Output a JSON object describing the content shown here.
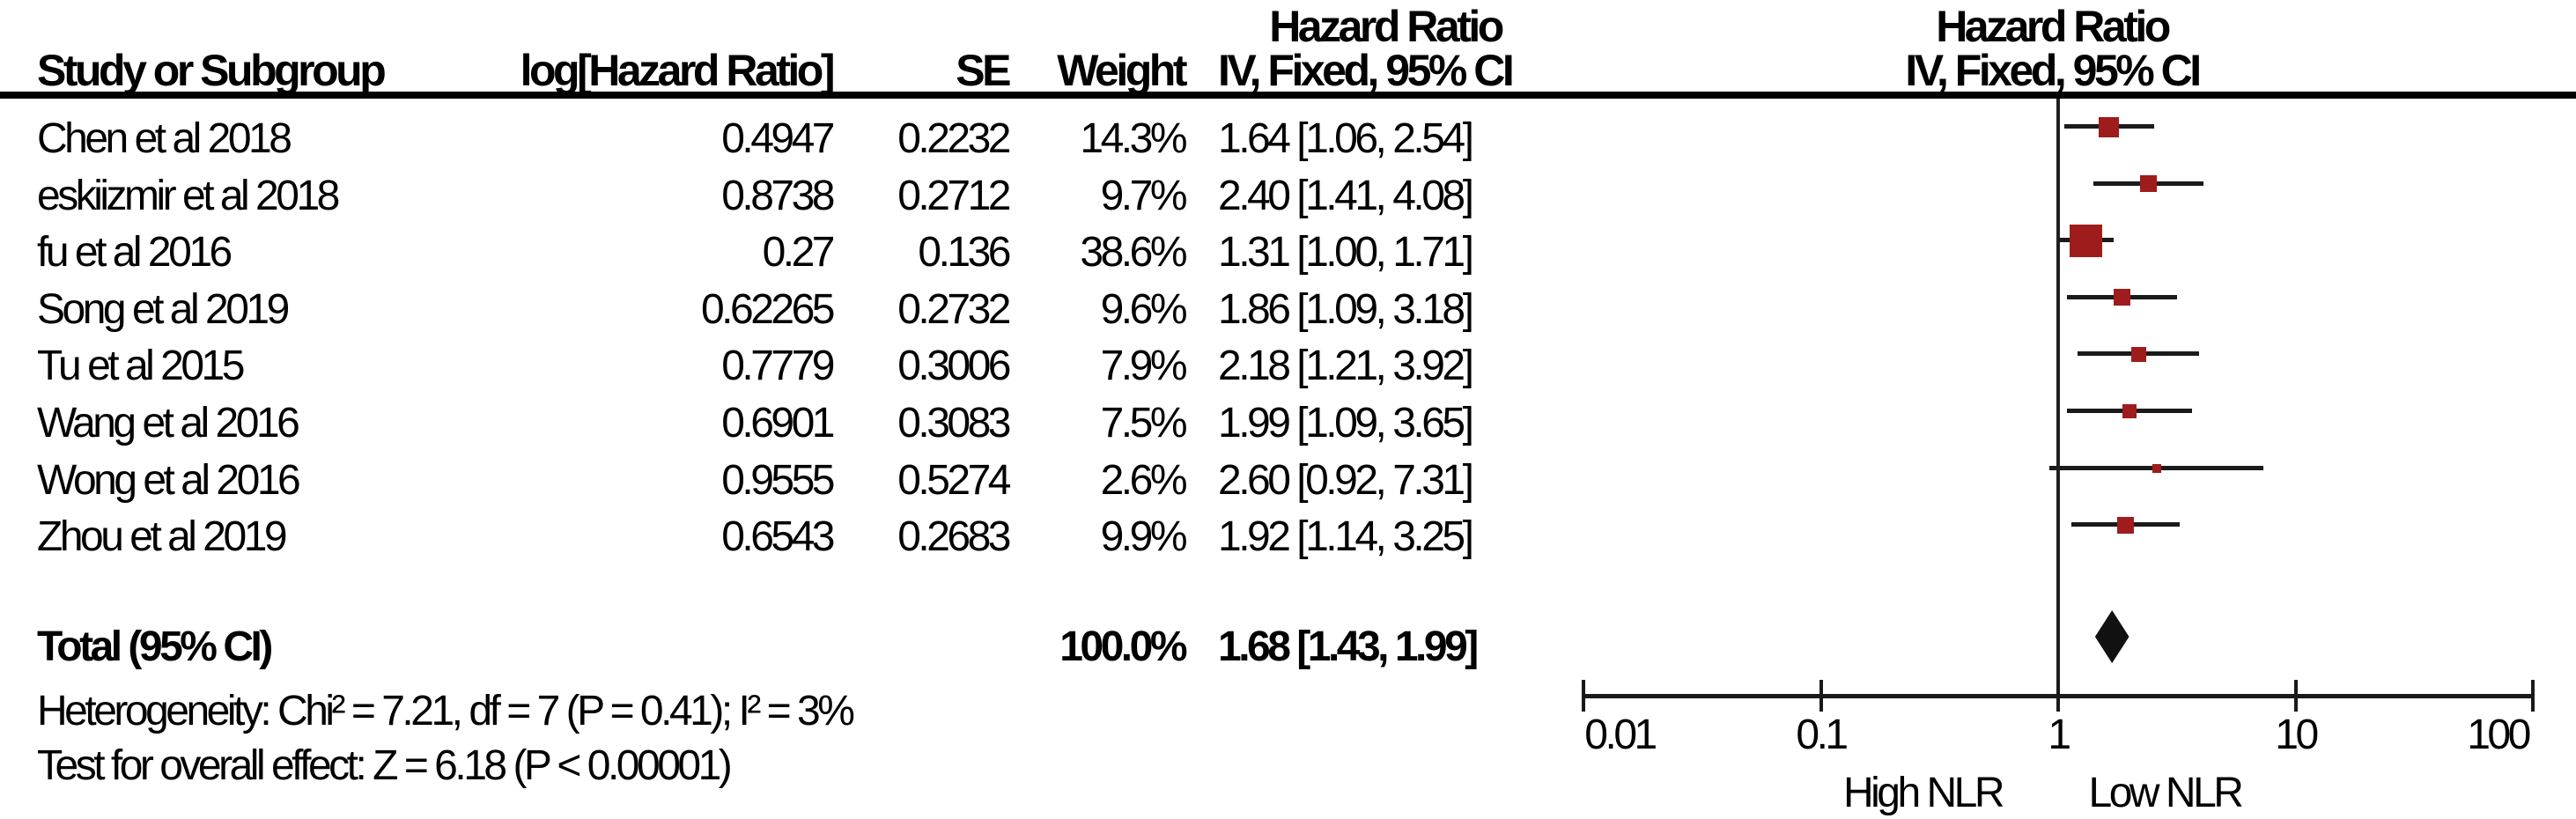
{
  "table": {
    "stat_col_title": "Hazard Ratio",
    "plot_col_title": "Hazard Ratio",
    "col_headers": {
      "study": "Study or Subgroup",
      "log_hr": "log[Hazard Ratio]",
      "se": "SE",
      "weight": "Weight",
      "ci": "IV, Fixed, 95% CI",
      "plot_ci": "IV, Fixed, 95% CI"
    }
  },
  "chart_data": {
    "type": "forest",
    "effect_measure": "Hazard Ratio",
    "model": "IV, Fixed, 95% CI",
    "studies": [
      {
        "name": "Chen et al 2018",
        "log_hr": "0.4947",
        "se": "0.2232",
        "weight": "14.3%",
        "weight_pct": 14.3,
        "hr": 1.64,
        "ci_low": 1.06,
        "ci_high": 2.54,
        "ci_text": "1.64 [1.06, 2.54]"
      },
      {
        "name": "eskiizmir et al 2018",
        "log_hr": "0.8738",
        "se": "0.2712",
        "weight": "9.7%",
        "weight_pct": 9.7,
        "hr": 2.4,
        "ci_low": 1.41,
        "ci_high": 4.08,
        "ci_text": "2.40 [1.41, 4.08]"
      },
      {
        "name": "fu et al 2016",
        "log_hr": "0.27",
        "se": "0.136",
        "weight": "38.6%",
        "weight_pct": 38.6,
        "hr": 1.31,
        "ci_low": 1.0,
        "ci_high": 1.71,
        "ci_text": "1.31 [1.00, 1.71]"
      },
      {
        "name": "Song et al 2019",
        "log_hr": "0.62265",
        "se": "0.2732",
        "weight": "9.6%",
        "weight_pct": 9.6,
        "hr": 1.86,
        "ci_low": 1.09,
        "ci_high": 3.18,
        "ci_text": "1.86 [1.09, 3.18]"
      },
      {
        "name": "Tu et al 2015",
        "log_hr": "0.7779",
        "se": "0.3006",
        "weight": "7.9%",
        "weight_pct": 7.9,
        "hr": 2.18,
        "ci_low": 1.21,
        "ci_high": 3.92,
        "ci_text": "2.18 [1.21, 3.92]"
      },
      {
        "name": "Wang et al 2016",
        "log_hr": "0.6901",
        "se": "0.3083",
        "weight": "7.5%",
        "weight_pct": 7.5,
        "hr": 1.99,
        "ci_low": 1.09,
        "ci_high": 3.65,
        "ci_text": "1.99 [1.09, 3.65]"
      },
      {
        "name": "Wong et al 2016",
        "log_hr": "0.9555",
        "se": "0.5274",
        "weight": "2.6%",
        "weight_pct": 2.6,
        "hr": 2.6,
        "ci_low": 0.92,
        "ci_high": 7.31,
        "ci_text": "2.60 [0.92, 7.31]"
      },
      {
        "name": "Zhou et al 2019",
        "log_hr": "0.6543",
        "se": "0.2683",
        "weight": "9.9%",
        "weight_pct": 9.9,
        "hr": 1.92,
        "ci_low": 1.14,
        "ci_high": 3.25,
        "ci_text": "1.92 [1.14, 3.25]"
      }
    ],
    "total": {
      "label": "Total (95% CI)",
      "weight": "100.0%",
      "hr": 1.68,
      "ci_low": 1.43,
      "ci_high": 1.99,
      "ci_text": "1.68 [1.43, 1.99]"
    },
    "heterogeneity": "Heterogeneity: Chi² = 7.21, df = 7 (P = 0.41); I² = 3%",
    "overall_effect": "Test for overall effect: Z = 6.18 (P < 0.00001)",
    "axis": {
      "scale": "log",
      "range": [
        0.01,
        100
      ],
      "ticks": [
        0.01,
        0.1,
        1,
        10,
        100
      ],
      "tick_labels": [
        "0.01",
        "0.1",
        "1",
        "10",
        "100"
      ],
      "left_label": "High NLR",
      "right_label": "Low NLR"
    },
    "marker_color": "#9e1c1c",
    "diamond_color": "#111111",
    "line_color": "#1a1a1a"
  }
}
